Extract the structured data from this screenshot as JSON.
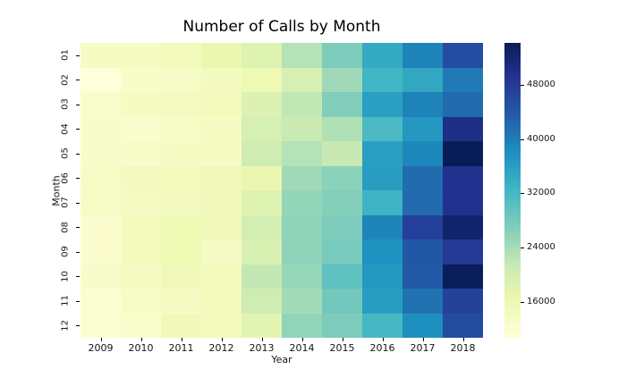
{
  "figure": {
    "background": "#ffffff",
    "text_color": "#000000"
  },
  "chart_data": {
    "type": "heatmap",
    "title": "Number of Calls by Month",
    "xlabel": "Year",
    "ylabel": "Month",
    "x_categories": [
      "2009",
      "2010",
      "2011",
      "2012",
      "2013",
      "2014",
      "2015",
      "2016",
      "2017",
      "2018"
    ],
    "y_categories": [
      "01",
      "02",
      "03",
      "04",
      "05",
      "06",
      "07",
      "08",
      "09",
      "10",
      "11",
      "12"
    ],
    "values": [
      [
        13700,
        13700,
        14600,
        16400,
        18300,
        22900,
        27200,
        34200,
        39400,
        45500
      ],
      [
        10700,
        12900,
        13300,
        14200,
        15700,
        19400,
        24600,
        32500,
        34600,
        40300
      ],
      [
        12400,
        13500,
        14000,
        14600,
        18500,
        22000,
        26800,
        35900,
        39400,
        42000
      ],
      [
        12900,
        12200,
        13300,
        13700,
        19400,
        21100,
        23300,
        31600,
        36800,
        49900
      ],
      [
        12700,
        12900,
        13700,
        13500,
        20500,
        22900,
        21400,
        35900,
        39000,
        54200
      ],
      [
        13300,
        14200,
        14600,
        15100,
        16400,
        24600,
        26100,
        36100,
        41800,
        49400
      ],
      [
        13100,
        13700,
        14200,
        15100,
        18300,
        25500,
        26600,
        32900,
        42000,
        49400
      ],
      [
        12000,
        14600,
        15700,
        15100,
        19800,
        25900,
        27200,
        39200,
        47200,
        52500
      ],
      [
        12000,
        14600,
        15700,
        13500,
        19000,
        25900,
        27700,
        37700,
        44200,
        48100
      ],
      [
        12700,
        13700,
        15100,
        14600,
        21800,
        25300,
        29800,
        36800,
        44000,
        54000
      ],
      [
        11600,
        13100,
        13500,
        14800,
        20500,
        24200,
        28100,
        36100,
        41200,
        47000
      ],
      [
        11800,
        12400,
        15100,
        14600,
        17700,
        25700,
        27200,
        32000,
        38100,
        45700
      ]
    ],
    "vmin": 10700,
    "vmax": 54200,
    "grid": false,
    "colormap": {
      "name": "YlGnBu",
      "stops": [
        {
          "t": 0.0,
          "color": "#ffffd9"
        },
        {
          "t": 0.125,
          "color": "#edf8b1"
        },
        {
          "t": 0.25,
          "color": "#c7e9b4"
        },
        {
          "t": 0.375,
          "color": "#7fcdbb"
        },
        {
          "t": 0.5,
          "color": "#41b6c4"
        },
        {
          "t": 0.625,
          "color": "#1d91c0"
        },
        {
          "t": 0.75,
          "color": "#225ea8"
        },
        {
          "t": 0.875,
          "color": "#253494"
        },
        {
          "t": 1.0,
          "color": "#081d58"
        }
      ]
    },
    "colorbar": {
      "position": "right",
      "ticks": [
        16000,
        24000,
        32000,
        40000,
        48000
      ],
      "tick_labels": [
        "16000",
        "24000",
        "32000",
        "40000",
        "48000"
      ]
    }
  }
}
